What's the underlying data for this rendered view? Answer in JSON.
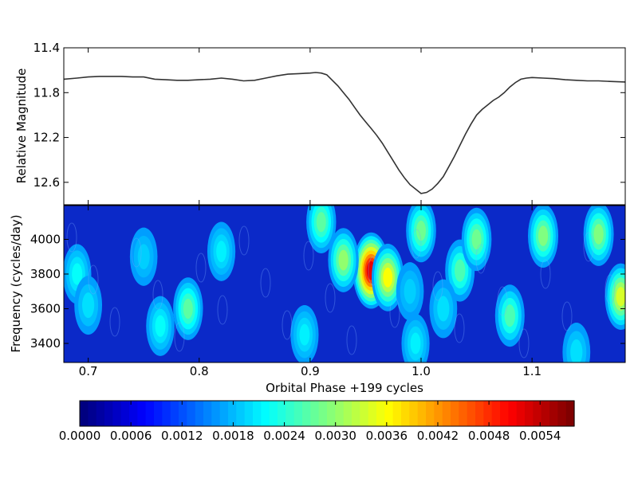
{
  "chart_data": [
    {
      "type": "line",
      "ylabel": "Relative Magnitude",
      "xlim": [
        0.678,
        1.184
      ],
      "ylim": [
        11.4,
        12.8
      ],
      "y_inverted": true,
      "yticks": [
        "11.4",
        "11.8",
        "12.2",
        "12.6"
      ],
      "grid": false,
      "series": [
        {
          "x": [
            0.678,
            0.69,
            0.7,
            0.71,
            0.72,
            0.73,
            0.74,
            0.75,
            0.76,
            0.77,
            0.78,
            0.79,
            0.8,
            0.81,
            0.82,
            0.83,
            0.84,
            0.85,
            0.86,
            0.87,
            0.88,
            0.89,
            0.9,
            0.905,
            0.91,
            0.915,
            0.92,
            0.925,
            0.93,
            0.935,
            0.94,
            0.945,
            0.95,
            0.955,
            0.96,
            0.965,
            0.97,
            0.975,
            0.98,
            0.985,
            0.99,
            0.995,
            1.0,
            1.005,
            1.01,
            1.015,
            1.02,
            1.025,
            1.03,
            1.035,
            1.04,
            1.045,
            1.05,
            1.055,
            1.06,
            1.065,
            1.07,
            1.075,
            1.08,
            1.085,
            1.09,
            1.095,
            1.1,
            1.11,
            1.12,
            1.13,
            1.14,
            1.15,
            1.16,
            1.17,
            1.184
          ],
          "y": [
            11.68,
            11.67,
            11.66,
            11.655,
            11.655,
            11.655,
            11.66,
            11.66,
            11.68,
            11.685,
            11.69,
            11.69,
            11.685,
            11.68,
            11.67,
            11.68,
            11.695,
            11.69,
            11.67,
            11.65,
            11.635,
            11.63,
            11.625,
            11.62,
            11.625,
            11.64,
            11.69,
            11.74,
            11.8,
            11.86,
            11.93,
            12.0,
            12.06,
            12.12,
            12.18,
            12.25,
            12.33,
            12.41,
            12.49,
            12.56,
            12.62,
            12.66,
            12.7,
            12.69,
            12.66,
            12.61,
            12.55,
            12.46,
            12.37,
            12.27,
            12.17,
            12.08,
            12.0,
            11.95,
            11.91,
            11.87,
            11.84,
            11.8,
            11.75,
            11.71,
            11.68,
            11.67,
            11.665,
            11.67,
            11.675,
            11.685,
            11.69,
            11.695,
            11.695,
            11.7,
            11.705
          ]
        }
      ]
    },
    {
      "type": "heatmap",
      "xlabel": "Orbital Phase +199 cycles",
      "ylabel": "Frequency (cycles/day)",
      "xlim": [
        0.678,
        1.184
      ],
      "ylim": [
        3290,
        4195
      ],
      "xticks": [
        "0.7",
        "0.8",
        "0.9",
        "1.0",
        "1.1"
      ],
      "yticks": [
        "3400",
        "3600",
        "3800",
        "4000"
      ],
      "colormap": "jet",
      "colorbar": {
        "orientation": "horizontal",
        "placement": "bottom",
        "range": [
          0.0,
          0.0058
        ],
        "ticks": [
          "0.0000",
          "0.0006",
          "0.0012",
          "0.0018",
          "0.0024",
          "0.0030",
          "0.0036",
          "0.0042",
          "0.0048",
          "0.0054"
        ]
      },
      "peaks": [
        {
          "x": 0.955,
          "y": 3820,
          "value": 0.0052
        },
        {
          "x": 0.93,
          "y": 3880,
          "value": 0.003
        },
        {
          "x": 0.97,
          "y": 3780,
          "value": 0.0036
        },
        {
          "x": 0.91,
          "y": 4100,
          "value": 0.0027
        },
        {
          "x": 1.0,
          "y": 4050,
          "value": 0.0028
        },
        {
          "x": 1.035,
          "y": 3820,
          "value": 0.0026
        },
        {
          "x": 1.05,
          "y": 4000,
          "value": 0.0028
        },
        {
          "x": 1.11,
          "y": 4020,
          "value": 0.0029
        },
        {
          "x": 1.16,
          "y": 4030,
          "value": 0.0029
        },
        {
          "x": 1.18,
          "y": 3670,
          "value": 0.0034
        },
        {
          "x": 1.08,
          "y": 3560,
          "value": 0.0026
        },
        {
          "x": 0.79,
          "y": 3600,
          "value": 0.0027
        },
        {
          "x": 0.765,
          "y": 3500,
          "value": 0.0022
        },
        {
          "x": 0.69,
          "y": 3800,
          "value": 0.0022
        },
        {
          "x": 0.7,
          "y": 3620,
          "value": 0.002
        },
        {
          "x": 0.75,
          "y": 3900,
          "value": 0.0019
        },
        {
          "x": 0.82,
          "y": 3930,
          "value": 0.0021
        },
        {
          "x": 0.895,
          "y": 3450,
          "value": 0.0021
        },
        {
          "x": 0.995,
          "y": 3400,
          "value": 0.0021
        },
        {
          "x": 1.02,
          "y": 3600,
          "value": 0.002
        },
        {
          "x": 1.14,
          "y": 3350,
          "value": 0.002
        },
        {
          "x": 0.99,
          "y": 3700,
          "value": 0.0019
        }
      ]
    }
  ]
}
